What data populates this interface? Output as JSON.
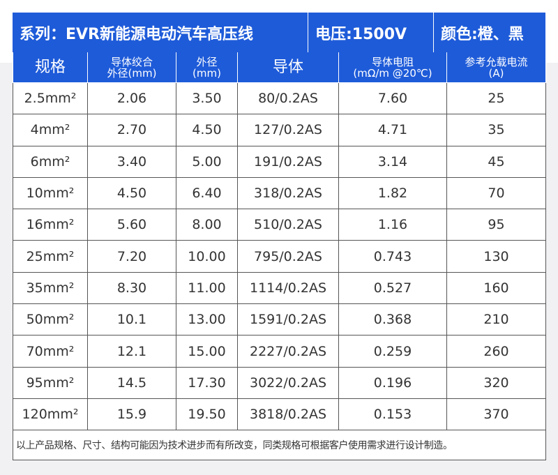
{
  "header": {
    "title": "系列：EVR新能源电动汽车高压线",
    "voltage": "电压:1500V",
    "color": "颜色:橙、黑"
  },
  "table": {
    "columns": [
      "规格",
      "导体绞合\n外径(mm)",
      "外径\n(mm)",
      "导体",
      "导体电阻\n(mΩ/m @20℃)",
      "参考允载电流\n(A)"
    ],
    "rows": [
      [
        "2.5mm²",
        "2.06",
        "3.50",
        "80/0.2AS",
        "7.60",
        "25"
      ],
      [
        "4mm²",
        "2.70",
        "4.50",
        "127/0.2AS",
        "4.71",
        "35"
      ],
      [
        "6mm²",
        "3.40",
        "5.00",
        "191/0.2AS",
        "3.14",
        "45"
      ],
      [
        "10mm²",
        "4.50",
        "6.40",
        "318/0.2AS",
        "1.82",
        "70"
      ],
      [
        "16mm²",
        "5.60",
        "8.00",
        "510/0.2AS",
        "1.16",
        "95"
      ],
      [
        "25mm²",
        "7.20",
        "10.00",
        "795/0.2AS",
        "0.743",
        "130"
      ],
      [
        "35mm²",
        "8.30",
        "11.00",
        "1114/0.2AS",
        "0.527",
        "160"
      ],
      [
        "50mm²",
        "10.1",
        "13.00",
        "1591/0.2AS",
        "0.368",
        "210"
      ],
      [
        "70mm²",
        "12.1",
        "15.00",
        "2227/0.2AS",
        "0.259",
        "260"
      ],
      [
        "95mm²",
        "14.5",
        "17.30",
        "3022/0.2AS",
        "0.196",
        "320"
      ],
      [
        "120mm²",
        "15.9",
        "19.50",
        "3818/0.2AS",
        "0.153",
        "370"
      ]
    ]
  },
  "footnote": "以上产品规格、尺寸、结构可能因为技术进步而有所改变，同类规格可根据客户使用需求进行设计制造。"
}
